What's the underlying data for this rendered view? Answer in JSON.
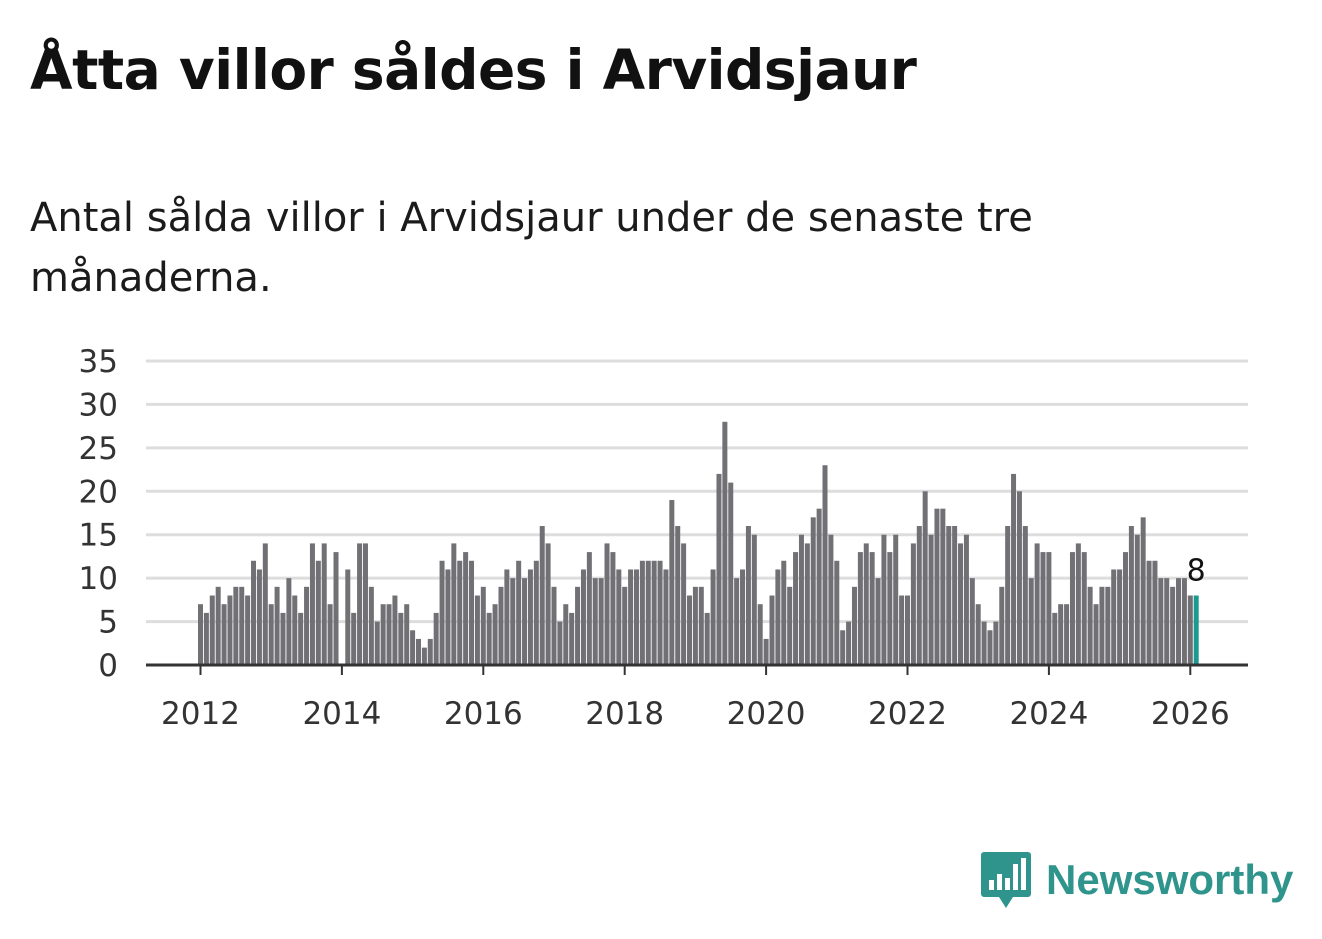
{
  "title": "Åtta villor såldes i Arvidsjaur",
  "subtitle": "Antal sålda villor i Arvidsjaur under de senaste tre månaderna.",
  "brand": {
    "name": "Newsworthy",
    "color": "#2f958c"
  },
  "colors": {
    "bar": "#717074",
    "highlight": "#1b9a92",
    "grid": "#dddddd",
    "axis": "#333333"
  },
  "chart_data": {
    "type": "bar",
    "title": "Åtta villor såldes i Arvidsjaur",
    "xlabel": "",
    "ylabel": "",
    "start": "2012-01",
    "x_ticks": [
      "2012",
      "2014",
      "2016",
      "2018",
      "2020",
      "2022",
      "2024",
      "2026"
    ],
    "y_ticks": [
      0,
      5,
      10,
      15,
      20,
      25,
      30,
      35
    ],
    "ylim": [
      0,
      35
    ],
    "grid": true,
    "highlight_last": true,
    "last_label": "8",
    "values": [
      7,
      6,
      8,
      9,
      7,
      8,
      9,
      9,
      8,
      12,
      11,
      14,
      7,
      9,
      6,
      10,
      8,
      6,
      9,
      14,
      12,
      14,
      7,
      13,
      0,
      11,
      6,
      14,
      14,
      9,
      5,
      7,
      7,
      8,
      6,
      7,
      4,
      3,
      2,
      3,
      6,
      12,
      11,
      14,
      12,
      13,
      12,
      8,
      9,
      6,
      7,
      9,
      11,
      10,
      12,
      10,
      11,
      12,
      16,
      14,
      9,
      5,
      7,
      6,
      9,
      11,
      13,
      10,
      10,
      14,
      13,
      11,
      9,
      11,
      11,
      12,
      12,
      12,
      12,
      11,
      19,
      16,
      14,
      8,
      9,
      9,
      6,
      11,
      22,
      28,
      21,
      10,
      11,
      16,
      15,
      7,
      3,
      8,
      11,
      12,
      9,
      13,
      15,
      14,
      17,
      18,
      23,
      15,
      12,
      4,
      5,
      9,
      13,
      14,
      13,
      10,
      15,
      13,
      15,
      8,
      8,
      14,
      16,
      20,
      15,
      18,
      18,
      16,
      16,
      14,
      15,
      10,
      7,
      5,
      4,
      5,
      9,
      16,
      22,
      20,
      16,
      10,
      14,
      13,
      13,
      6,
      7,
      7,
      13,
      14,
      13,
      9,
      7,
      9,
      9,
      11,
      11,
      13,
      16,
      15,
      17,
      12,
      12,
      10,
      10,
      9,
      10,
      10,
      8,
      8
    ]
  }
}
